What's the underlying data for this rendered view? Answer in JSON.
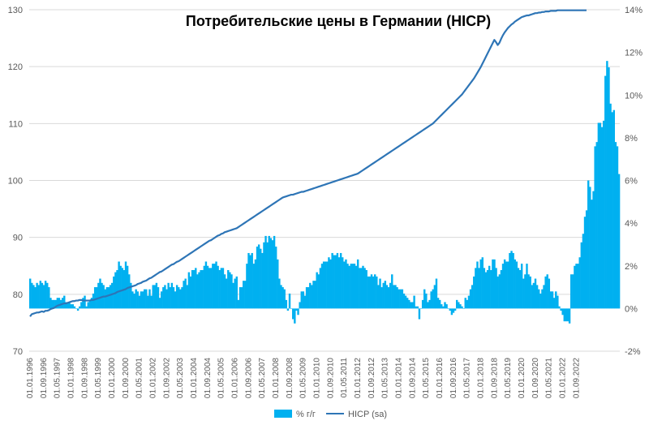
{
  "chart_data": {
    "type": "bar+line",
    "title": "Потребительские цены в Германии (HICP)",
    "x_tick_labels": [
      "01.01.1996",
      "01.09.1996",
      "01.05.1997",
      "01.01.1998",
      "01.09.1998",
      "01.05.1999",
      "01.01.2000",
      "01.09.2000",
      "01.05.2001",
      "01.01.2002",
      "01.09.2002",
      "01.05.2003",
      "01.01.2004",
      "01.09.2004",
      "01.05.2005",
      "01.01.2006",
      "01.09.2006",
      "01.05.2007",
      "01.01.2008",
      "01.09.2008",
      "01.05.2009",
      "01.01.2010",
      "01.09.2010",
      "01.05.2011",
      "01.01.2012",
      "01.09.2012",
      "01.05.2013",
      "01.01.2014",
      "01.09.2014",
      "01.05.2015",
      "01.01.2016",
      "01.09.2016",
      "01.05.2017",
      "01.01.2018",
      "01.09.2018",
      "01.05.2019",
      "01.01.2020",
      "01.09.2020",
      "01.05.2021",
      "01.01.2022",
      "01.09.2022"
    ],
    "y_left": {
      "min": 70,
      "max": 130,
      "ticks": [
        "70",
        "80",
        "90",
        "100",
        "110",
        "120",
        "130"
      ]
    },
    "y_right": {
      "min": -2,
      "max": 14,
      "ticks": [
        "-2%",
        "0%",
        "2%",
        "4%",
        "6%",
        "8%",
        "10%",
        "12%",
        "14%"
      ]
    },
    "series": [
      {
        "name": "% г/г",
        "type": "bar",
        "axis": "right",
        "color": "#00b0f0",
        "x_start": "1996-01",
        "values": [
          1.4,
          1.2,
          1.1,
          1.0,
          1.2,
          1.1,
          1.3,
          1.2,
          1.1,
          1.3,
          1.2,
          1.0,
          0.5,
          0.4,
          0.4,
          0.4,
          0.5,
          0.5,
          0.4,
          0.5,
          0.6,
          0.3,
          0.3,
          0.3,
          0.2,
          0.2,
          0.1,
          0.0,
          -0.1,
          0.1,
          0.3,
          0.5,
          0.6,
          0.1,
          0.3,
          0.4,
          0.5,
          0.7,
          1.0,
          1.0,
          1.2,
          1.4,
          1.2,
          1.1,
          0.9,
          1.0,
          1.0,
          1.1,
          1.2,
          1.5,
          1.7,
          1.8,
          2.2,
          2.0,
          1.9,
          1.8,
          2.2,
          2.0,
          1.6,
          1.2,
          0.8,
          0.7,
          0.9,
          0.8,
          0.6,
          0.8,
          0.8,
          0.9,
          0.9,
          0.6,
          0.9,
          0.6,
          1.1,
          1.1,
          1.2,
          1.0,
          0.5,
          0.8,
          1.0,
          1.1,
          0.9,
          1.2,
          1.0,
          1.2,
          1.0,
          0.8,
          1.1,
          1.0,
          0.9,
          1.0,
          1.3,
          1.4,
          1.1,
          1.7,
          1.5,
          1.8,
          1.8,
          1.9,
          1.6,
          1.7,
          1.8,
          1.8,
          2.0,
          2.2,
          2.0,
          1.9,
          1.9,
          2.1,
          2.1,
          2.2,
          2.0,
          1.8,
          1.9,
          1.9,
          1.6,
          1.4,
          1.8,
          1.7,
          1.6,
          1.2,
          1.4,
          1.5,
          0.4,
          1.0,
          1.0,
          1.3,
          1.3,
          2.1,
          2.6,
          2.5,
          2.6,
          2.1,
          2.3,
          2.9,
          3.0,
          2.8,
          2.6,
          3.1,
          3.4,
          3.1,
          3.4,
          3.3,
          3.2,
          3.4,
          2.9,
          2.3,
          1.4,
          1.1,
          1.0,
          0.9,
          0.4,
          -0.1,
          0.7,
          0.0,
          -0.5,
          -0.7,
          -0.1,
          -0.3,
          0.3,
          0.8,
          0.8,
          0.6,
          1.0,
          1.0,
          1.2,
          1.1,
          1.3,
          1.3,
          1.7,
          1.6,
          1.9,
          2.1,
          2.2,
          2.2,
          2.2,
          2.4,
          2.3,
          2.6,
          2.5,
          2.5,
          2.6,
          2.4,
          2.6,
          2.4,
          2.2,
          2.3,
          2.1,
          2.0,
          2.1,
          2.1,
          2.1,
          2.0,
          2.3,
          1.9,
          1.9,
          2.0,
          1.9,
          1.8,
          1.5,
          1.5,
          1.6,
          1.5,
          1.6,
          1.5,
          1.1,
          1.4,
          1.0,
          1.2,
          1.3,
          1.1,
          1.0,
          1.2,
          1.6,
          1.1,
          1.1,
          1.0,
          0.9,
          0.9,
          0.9,
          0.7,
          0.6,
          0.5,
          0.4,
          0.3,
          0.3,
          0.6,
          0.1,
          0.1,
          -0.5,
          0.0,
          0.4,
          0.9,
          0.7,
          0.3,
          0.4,
          0.8,
          0.9,
          1.1,
          1.4,
          0.5,
          0.4,
          0.2,
          0.1,
          0.3,
          0.2,
          0.0,
          -0.1,
          -0.3,
          -0.2,
          -0.1,
          0.4,
          0.3,
          0.2,
          0.1,
          0.0,
          0.5,
          0.4,
          0.6,
          0.9,
          1.1,
          1.5,
          1.9,
          2.2,
          1.9,
          2.3,
          2.4,
          1.9,
          1.7,
          1.8,
          2.0,
          1.8,
          2.3,
          2.3,
          1.9,
          1.5,
          1.6,
          1.8,
          2.1,
          2.3,
          2.2,
          2.2,
          2.6,
          2.7,
          2.6,
          2.3,
          2.2,
          1.9,
          1.8,
          2.1,
          1.4,
          1.6,
          2.1,
          1.6,
          1.5,
          1.1,
          1.2,
          1.4,
          1.1,
          0.9,
          0.7,
          0.9,
          1.1,
          1.5,
          1.6,
          1.4,
          0.8,
          0.8,
          0.5,
          0.8,
          0.6,
          0.1,
          -0.1,
          -0.3,
          -0.6,
          -0.6,
          -0.6,
          -0.7,
          1.6,
          1.6,
          2.0,
          2.1,
          2.1,
          2.4,
          3.1,
          3.5,
          4.3,
          4.6,
          6.0,
          5.7,
          5.1,
          5.5,
          7.6,
          7.8,
          8.7,
          8.7,
          8.5,
          8.8,
          10.9,
          11.6,
          11.3,
          9.6,
          9.2,
          9.3,
          7.8,
          7.6,
          6.3
        ]
      },
      {
        "name": "HICP (sa)",
        "type": "line",
        "axis": "left",
        "color": "#2e75b6",
        "x_start": "1996-01",
        "values": [
          76.1,
          76.5,
          76.6,
          76.7,
          76.8,
          76.8,
          76.9,
          77.0,
          76.9,
          77.1,
          77.1,
          77.2,
          77.4,
          77.5,
          77.6,
          77.8,
          78.0,
          78.1,
          78.2,
          78.3,
          78.4,
          78.4,
          78.5,
          78.6,
          78.7,
          78.8,
          78.8,
          78.9,
          78.9,
          79.0,
          79.0,
          78.9,
          78.9,
          78.9,
          78.9,
          78.9,
          79.0,
          79.0,
          79.1,
          79.2,
          79.3,
          79.4,
          79.5,
          79.6,
          79.6,
          79.7,
          79.8,
          79.9,
          80.0,
          80.1,
          80.2,
          80.4,
          80.5,
          80.6,
          80.7,
          80.8,
          80.9,
          81.1,
          81.2,
          81.3,
          81.4,
          81.5,
          81.6,
          81.8,
          81.9,
          82.0,
          82.2,
          82.3,
          82.4,
          82.6,
          82.8,
          82.9,
          83.1,
          83.3,
          83.5,
          83.7,
          83.9,
          84.0,
          84.2,
          84.4,
          84.6,
          84.8,
          85.0,
          85.2,
          85.3,
          85.5,
          85.7,
          85.8,
          86.0,
          86.2,
          86.4,
          86.6,
          86.8,
          87.0,
          87.2,
          87.4,
          87.6,
          87.8,
          88.0,
          88.2,
          88.4,
          88.6,
          88.8,
          89.0,
          89.2,
          89.4,
          89.5,
          89.7,
          89.9,
          90.1,
          90.3,
          90.4,
          90.6,
          90.7,
          90.9,
          91.0,
          91.1,
          91.2,
          91.3,
          91.4,
          91.5,
          91.6,
          91.8,
          92.0,
          92.2,
          92.4,
          92.6,
          92.8,
          93.0,
          93.2,
          93.4,
          93.6,
          93.8,
          94.0,
          94.2,
          94.4,
          94.6,
          94.8,
          95.0,
          95.2,
          95.4,
          95.6,
          95.8,
          96.0,
          96.2,
          96.4,
          96.6,
          96.8,
          97.0,
          97.1,
          97.2,
          97.3,
          97.4,
          97.5,
          97.5,
          97.6,
          97.7,
          97.8,
          97.9,
          98.0,
          98.0,
          98.1,
          98.2,
          98.3,
          98.4,
          98.5,
          98.6,
          98.7,
          98.8,
          98.9,
          99.0,
          99.1,
          99.2,
          99.3,
          99.4,
          99.5,
          99.6,
          99.7,
          99.8,
          99.9,
          100.0,
          100.1,
          100.2,
          100.3,
          100.4,
          100.5,
          100.6,
          100.7,
          100.8,
          100.9,
          101.0,
          101.1,
          101.2,
          101.4,
          101.6,
          101.8,
          102.0,
          102.2,
          102.4,
          102.6,
          102.8,
          103.0,
          103.2,
          103.4,
          103.6,
          103.8,
          104.0,
          104.2,
          104.4,
          104.6,
          104.8,
          105.0,
          105.2,
          105.4,
          105.6,
          105.8,
          106.0,
          106.2,
          106.4,
          106.6,
          106.8,
          107.0,
          107.2,
          107.4,
          107.6,
          107.8,
          108.0,
          108.2,
          108.4,
          108.6,
          108.8,
          109.0,
          109.2,
          109.4,
          109.6,
          109.8,
          110.0,
          110.3,
          110.6,
          110.9,
          111.2,
          111.5,
          111.8,
          112.1,
          112.4,
          112.7,
          113.0,
          113.3,
          113.6,
          113.9,
          114.2,
          114.5,
          114.8,
          115.1,
          115.5,
          115.9,
          116.3,
          116.7,
          117.1,
          117.5,
          117.9,
          118.4,
          118.9,
          119.4,
          119.9,
          120.5,
          121.1,
          121.7,
          122.3,
          122.9,
          123.5,
          124.1,
          124.7,
          124.3,
          123.8,
          124.2,
          124.9,
          125.5,
          126.0,
          126.4,
          126.8,
          127.1,
          127.4,
          127.6,
          127.9,
          128.1,
          128.3,
          128.5,
          128.7,
          128.8,
          128.9,
          129.0,
          129.0,
          129.1,
          129.2,
          129.3,
          129.4,
          129.4,
          129.5,
          129.5,
          129.6,
          129.6,
          129.7,
          129.7,
          129.7,
          129.8,
          129.8,
          129.8,
          129.8,
          129.9,
          129.9,
          129.9,
          129.9,
          129.9,
          129.9,
          129.9,
          129.9,
          129.9,
          129.9,
          129.9,
          129.9,
          129.9,
          129.9,
          129.9,
          129.9,
          129.9,
          129.9
        ]
      }
    ],
    "legend_position": "bottom",
    "grid": {
      "horizontal": true,
      "vertical": false
    }
  }
}
